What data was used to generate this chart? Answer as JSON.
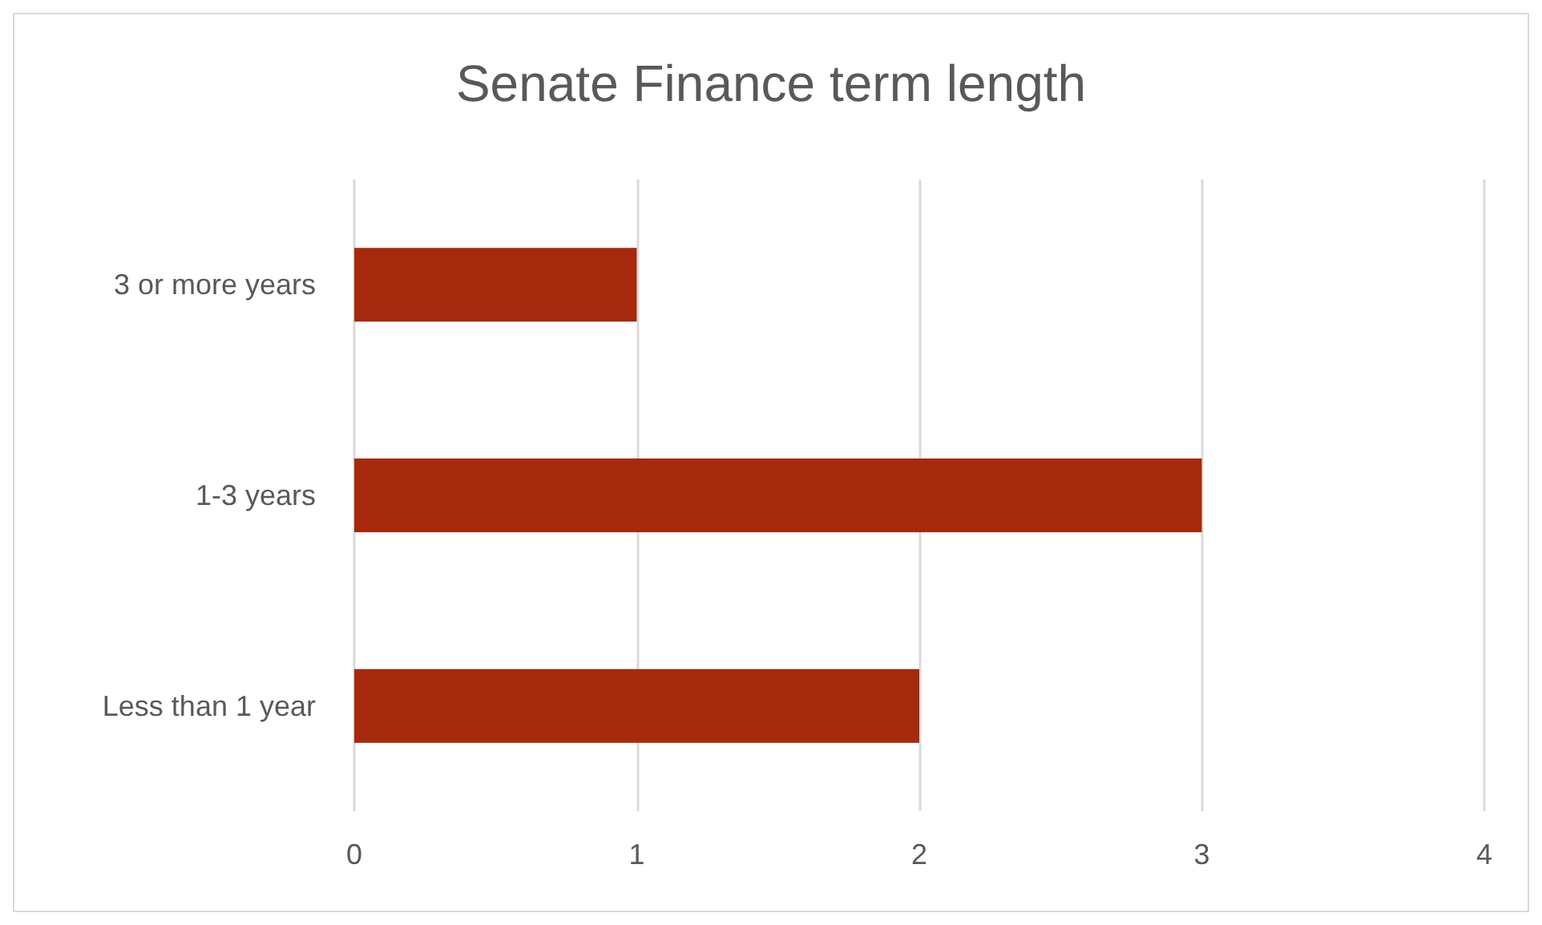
{
  "chart_data": {
    "type": "bar",
    "orientation": "horizontal",
    "title": "Senate Finance term length",
    "categories": [
      "3 or more years",
      "1-3 years",
      "Less than 1 year"
    ],
    "values": [
      1,
      3,
      2
    ],
    "color": "#a52a0d",
    "xlim": [
      0,
      4
    ],
    "xticks": [
      0,
      1,
      2,
      3,
      4
    ],
    "grid": "x"
  }
}
